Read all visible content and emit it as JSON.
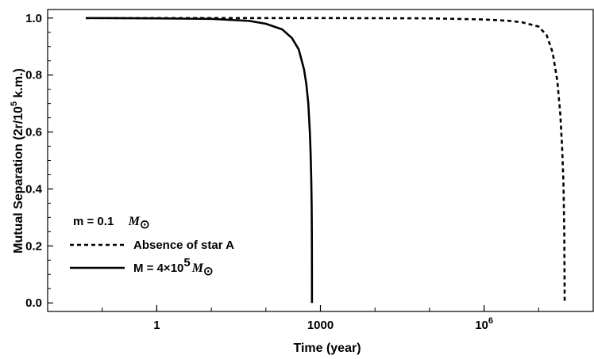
{
  "chart_data": {
    "type": "line",
    "title": "",
    "xlabel": "Time (year)",
    "ylabel_parts": [
      "Mutual Separation (2r/10",
      "5",
      " k.m.)"
    ],
    "x_scale": "log10",
    "xlim": [
      0.01,
      100000000
    ],
    "ylim": [
      -0.03,
      1.03
    ],
    "x_ticks": [
      {
        "value": 1,
        "label": "1"
      },
      {
        "value": 1000,
        "label": "1000"
      },
      {
        "value": 1000000,
        "label_base": "10",
        "label_exp": "6"
      }
    ],
    "y_ticks": [
      {
        "value": 0.0,
        "label": "0.0"
      },
      {
        "value": 0.2,
        "label": "0.2"
      },
      {
        "value": 0.4,
        "label": "0.4"
      },
      {
        "value": 0.6,
        "label": "0.6"
      },
      {
        "value": 0.8,
        "label": "0.8"
      },
      {
        "value": 1.0,
        "label": "1.0"
      }
    ],
    "grid": false,
    "legend_position": "bottom-left",
    "legend": {
      "header": "m = 0.1",
      "header_unit": "M",
      "header_unit_sub": "⊙",
      "entries": [
        {
          "label": "Absence of star A",
          "style": "dashed"
        },
        {
          "label_parts": [
            "M = 4×10",
            "5",
            "M",
            "⊙"
          ],
          "style": "solid"
        }
      ]
    },
    "series": [
      {
        "style": "solid",
        "x": [
          0.05,
          1,
          10,
          50,
          100,
          200,
          300,
          400,
          500,
          550,
          600,
          640,
          660,
          680,
          690,
          696,
          698,
          700
        ],
        "y": [
          1.0,
          0.999,
          0.997,
          0.99,
          0.98,
          0.96,
          0.93,
          0.89,
          0.82,
          0.77,
          0.7,
          0.6,
          0.53,
          0.43,
          0.35,
          0.25,
          0.18,
          0.0
        ]
      },
      {
        "style": "dashed",
        "x": [
          0.05,
          1,
          1000,
          100000,
          1000000,
          3000000,
          5000000,
          10000000,
          14000000,
          18000000,
          22000000,
          25000000,
          27000000,
          28500000,
          29500000,
          30000000
        ],
        "y": [
          1.0,
          1.0,
          1.0,
          0.999,
          0.995,
          0.99,
          0.985,
          0.97,
          0.94,
          0.88,
          0.78,
          0.66,
          0.54,
          0.42,
          0.25,
          0.0
        ]
      }
    ]
  }
}
